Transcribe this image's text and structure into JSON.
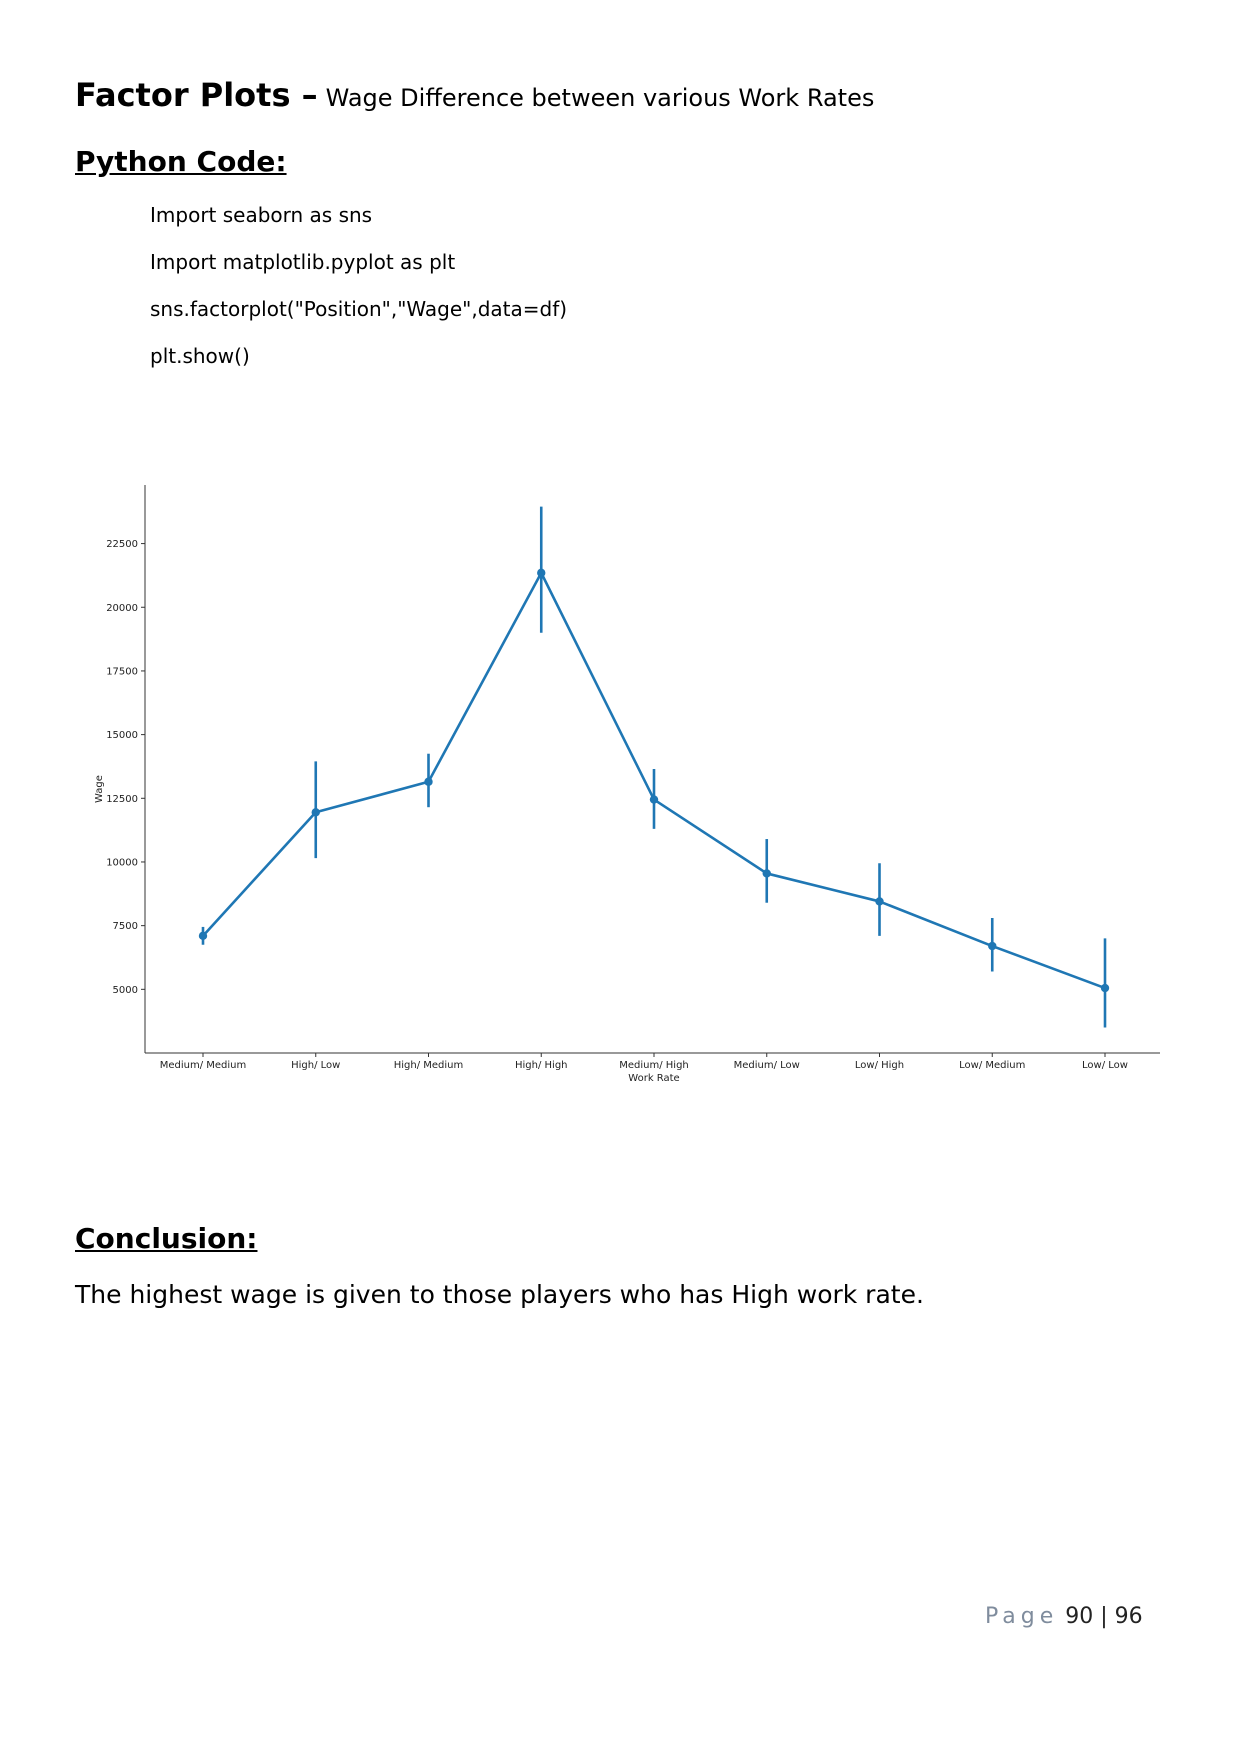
{
  "heading": {
    "main": "Factor Plots –",
    "sub": "Wage Difference between various Work Rates"
  },
  "python_code": {
    "title": "Python Code:",
    "lines": [
      "Import seaborn as sns",
      "Import matplotlib.pyplot as plt",
      "sns.factorplot(\"Position\",\"Wage\",data=df)",
      "plt.show()"
    ]
  },
  "conclusion": {
    "title": "Conclusion:",
    "text": "The highest wage is given to those players who has High work rate."
  },
  "footer": {
    "page_word": "Page",
    "numbers": "90 | 96"
  },
  "chart_data": {
    "type": "line",
    "xlabel": "Work Rate",
    "ylabel": "Wage",
    "categories": [
      "Medium/ Medium",
      "High/ Low",
      "High/ Medium",
      "High/ High",
      "Medium/ High",
      "Medium/ Low",
      "Low/ High",
      "Low/ Medium",
      "Low/ Low"
    ],
    "values": [
      7100,
      11950,
      13150,
      21350,
      12450,
      9550,
      8450,
      6700,
      5050
    ],
    "error_low": [
      6750,
      10150,
      12150,
      19000,
      11300,
      8400,
      7100,
      5700,
      3500
    ],
    "error_high": [
      7450,
      13950,
      14250,
      23950,
      13650,
      10900,
      9950,
      7800,
      7000
    ],
    "yticks": [
      5000,
      7500,
      10000,
      12500,
      15000,
      17500,
      20000,
      22500
    ],
    "ylim": [
      2500,
      24800
    ],
    "grid": false,
    "color": "#1f77b4"
  }
}
